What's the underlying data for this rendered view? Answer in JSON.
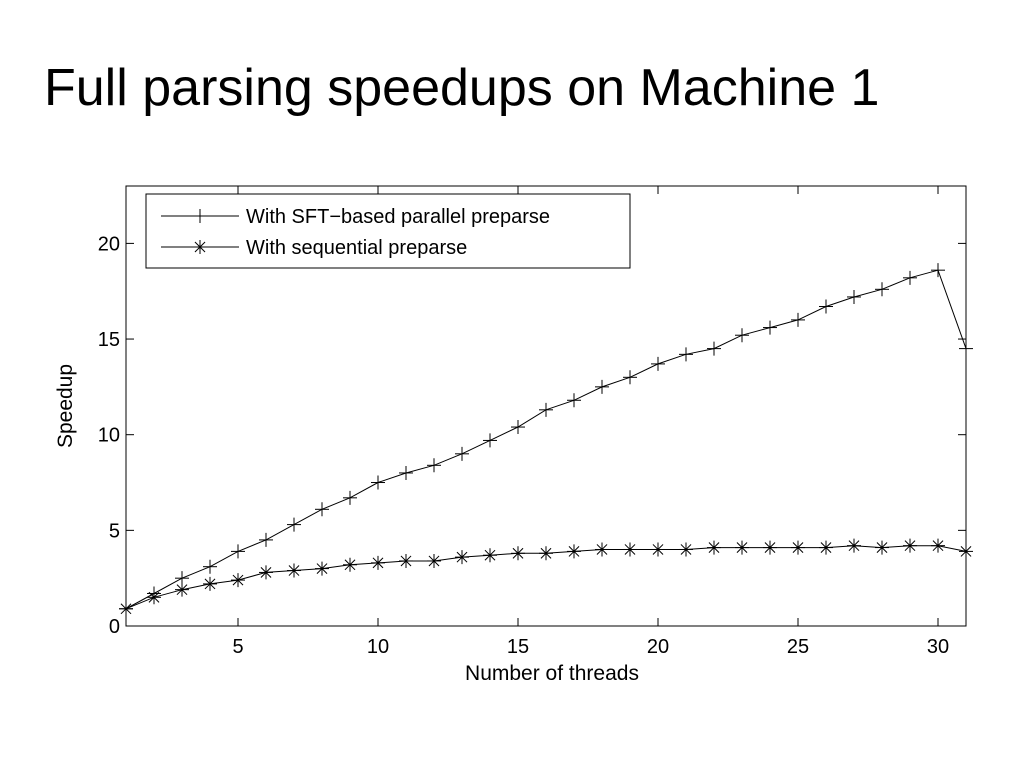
{
  "slide": {
    "title": "Full parsing speedups on Machine 1"
  },
  "chart_data": {
    "type": "line",
    "xlabel": "Number of threads",
    "ylabel": "Speedup",
    "xlim": [
      1,
      31
    ],
    "ylim": [
      0,
      23
    ],
    "xticks": [
      5,
      10,
      15,
      20,
      25,
      30
    ],
    "yticks": [
      0,
      5,
      10,
      15,
      20
    ],
    "grid": false,
    "legend_position": "top-left",
    "x": [
      1,
      2,
      3,
      4,
      5,
      6,
      7,
      8,
      9,
      10,
      11,
      12,
      13,
      14,
      15,
      16,
      17,
      18,
      19,
      20,
      21,
      22,
      23,
      24,
      25,
      26,
      27,
      28,
      29,
      30,
      31
    ],
    "series": [
      {
        "name": "With SFT−based parallel preparse",
        "marker": "plus",
        "color": "#000000",
        "values": [
          0.9,
          1.7,
          2.5,
          3.1,
          3.9,
          4.5,
          5.3,
          6.1,
          6.7,
          7.5,
          8.0,
          8.4,
          9.0,
          9.7,
          10.4,
          11.3,
          11.8,
          12.5,
          13.0,
          13.7,
          14.2,
          14.5,
          15.2,
          15.6,
          16.0,
          16.7,
          17.2,
          17.6,
          18.2,
          18.6,
          14.5
        ]
      },
      {
        "name": "With sequential preparse",
        "marker": "asterisk",
        "color": "#000000",
        "values": [
          0.9,
          1.5,
          1.9,
          2.2,
          2.4,
          2.8,
          2.9,
          3.0,
          3.2,
          3.3,
          3.4,
          3.4,
          3.6,
          3.7,
          3.8,
          3.8,
          3.9,
          4.0,
          4.0,
          4.0,
          4.0,
          4.1,
          4.1,
          4.1,
          4.1,
          4.1,
          4.2,
          4.1,
          4.2,
          4.2,
          3.9
        ]
      }
    ]
  }
}
